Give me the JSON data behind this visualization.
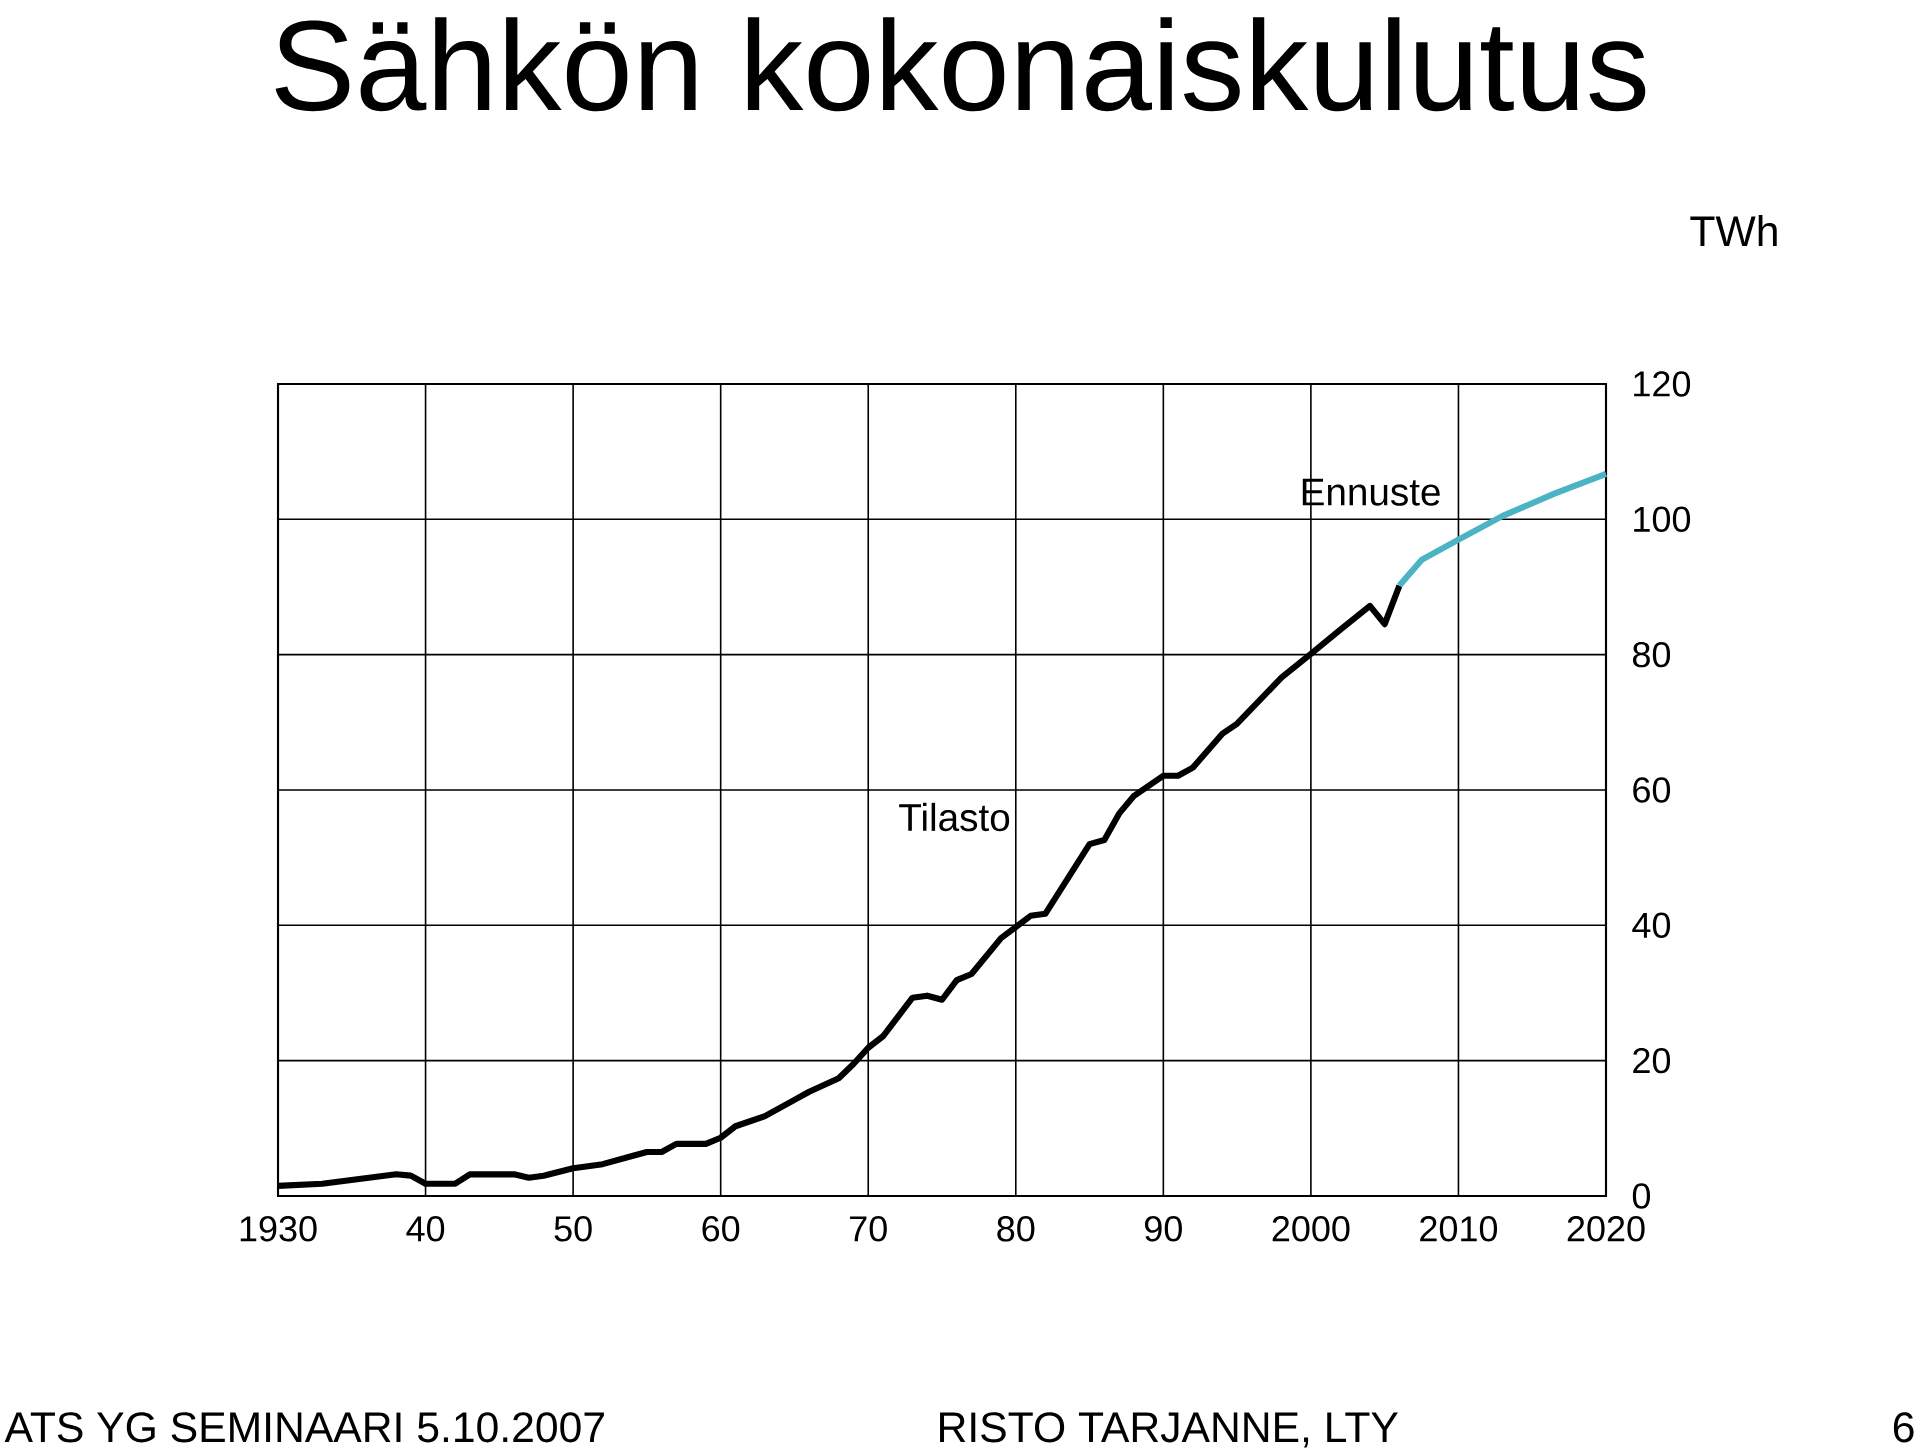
{
  "chart_data": {
    "type": "line",
    "title": "Sähkön kokonaiskulutus",
    "ylabel": "TWh",
    "xlim": [
      1930,
      2020
    ],
    "ylim": [
      0,
      120
    ],
    "xticks": [
      {
        "value": 1930,
        "label": "1930"
      },
      {
        "value": 1940,
        "label": "40"
      },
      {
        "value": 1950,
        "label": "50"
      },
      {
        "value": 1960,
        "label": "60"
      },
      {
        "value": 1970,
        "label": "70"
      },
      {
        "value": 1980,
        "label": "80"
      },
      {
        "value": 1990,
        "label": "90"
      },
      {
        "value": 2000,
        "label": "2000"
      },
      {
        "value": 2010,
        "label": "2010"
      },
      {
        "value": 2020,
        "label": "2020"
      }
    ],
    "yticks": [
      0,
      20,
      40,
      60,
      80,
      100,
      120
    ],
    "grid": true,
    "legend": false,
    "series": [
      {
        "name": "Tilasto",
        "color": "#000000",
        "x": [
          1930,
          1933,
          1938,
          1939,
          1940,
          1942,
          1943,
          1946,
          1947,
          1948,
          1950,
          1952,
          1954,
          1955,
          1956,
          1957,
          1959,
          1960,
          1961,
          1963,
          1965,
          1966,
          1968,
          1969,
          1970,
          1971,
          1973,
          1974,
          1975,
          1976,
          1977,
          1979,
          1981,
          1982,
          1985,
          1986,
          1987,
          1988,
          1990,
          1991,
          1992,
          1994,
          1995,
          1998,
          2000,
          2002,
          2004,
          2005,
          2006
        ],
        "values": [
          1.5,
          1.8,
          3.2,
          3.0,
          1.8,
          1.8,
          3.2,
          3.2,
          2.7,
          3.0,
          4.1,
          4.7,
          5.9,
          6.5,
          6.5,
          7.7,
          7.7,
          8.6,
          10.3,
          11.8,
          14.2,
          15.4,
          17.4,
          19.5,
          21.9,
          23.6,
          29.3,
          29.6,
          29.0,
          31.9,
          32.8,
          38.1,
          41.4,
          41.7,
          52.0,
          52.6,
          56.5,
          59.1,
          62.1,
          62.1,
          63.3,
          68.3,
          69.8,
          76.6,
          80.1,
          83.7,
          87.2,
          84.5,
          90.2
        ]
      },
      {
        "name": "Ennuste",
        "color": "#4bb3c4",
        "x": [
          2006,
          2007.5,
          2010,
          2013,
          2016.5,
          2020
        ],
        "values": [
          90.2,
          94.0,
          97.0,
          100.5,
          103.8,
          106.7
        ]
      }
    ],
    "annotations": [
      "ATS YG SEMINAARI 5.10.2007",
      "RISTO TARJANNE, LTY",
      "6"
    ]
  }
}
